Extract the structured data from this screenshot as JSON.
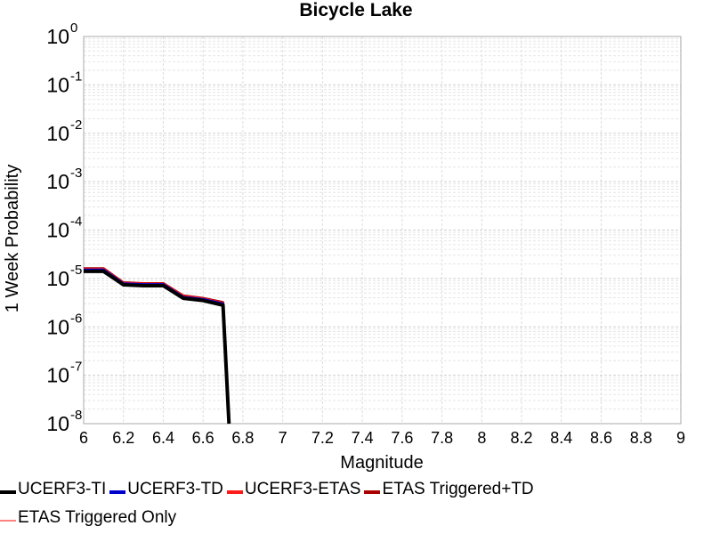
{
  "chart_data": {
    "type": "line",
    "title": "Bicycle Lake",
    "xlabel": "Magnitude",
    "ylabel": "1 Week Probability",
    "xlim": [
      6,
      9
    ],
    "ylim": [
      1e-08,
      1
    ],
    "yscale": "log",
    "x_ticks": [
      "6",
      "6.2",
      "6.4",
      "6.6",
      "6.8",
      "7",
      "7.2",
      "7.4",
      "7.6",
      "7.8",
      "8",
      "8.2",
      "8.4",
      "8.6",
      "8.8",
      "9"
    ],
    "y_ticks": [
      {
        "base": "10",
        "exp": "0"
      },
      {
        "base": "10",
        "exp": "-1"
      },
      {
        "base": "10",
        "exp": "-2"
      },
      {
        "base": "10",
        "exp": "-3"
      },
      {
        "base": "10",
        "exp": "-4"
      },
      {
        "base": "10",
        "exp": "-5"
      },
      {
        "base": "10",
        "exp": "-6"
      },
      {
        "base": "10",
        "exp": "-7"
      },
      {
        "base": "10",
        "exp": "-8"
      }
    ],
    "grid": true,
    "legend_position": "bottom",
    "series": [
      {
        "name": "UCERF3-TI",
        "color": "#000000",
        "x": [
          6.0,
          6.1,
          6.2,
          6.3,
          6.4,
          6.5,
          6.6,
          6.7,
          6.73
        ],
        "y": [
          1.4e-05,
          1.4e-05,
          7.4e-06,
          7.1e-06,
          7.1e-06,
          3.9e-06,
          3.5e-06,
          2.8e-06,
          1e-08
        ]
      },
      {
        "name": "UCERF3-TD",
        "color": "#0000cc",
        "x": [
          6.0,
          6.1,
          6.2,
          6.3,
          6.4,
          6.5,
          6.6,
          6.7,
          6.73
        ],
        "y": [
          1.5e-05,
          1.5e-05,
          7.8e-06,
          7.5e-06,
          7.5e-06,
          4.1e-06,
          3.7e-06,
          3e-06,
          1e-08
        ]
      },
      {
        "name": "UCERF3-ETAS",
        "color": "#ff1a1a",
        "x": [
          6.0,
          6.1,
          6.2,
          6.3,
          6.4,
          6.5,
          6.6,
          6.7,
          6.73
        ],
        "y": [
          1.55e-05,
          1.55e-05,
          8e-06,
          7.7e-06,
          7.7e-06,
          4.3e-06,
          3.8e-06,
          3.1e-06,
          1e-08
        ]
      },
      {
        "name": "ETAS Triggered+TD",
        "color": "#aa0000",
        "x": [
          6.0,
          6.1,
          6.2,
          6.3,
          6.4,
          6.5,
          6.6,
          6.7,
          6.73
        ],
        "y": [
          1.6e-05,
          1.6e-05,
          8.2e-06,
          7.9e-06,
          7.9e-06,
          4.4e-06,
          3.9e-06,
          3.2e-06,
          1e-08
        ]
      },
      {
        "name": "ETAS Triggered Only",
        "color": "#ff8080",
        "x": [
          6.0,
          6.1,
          6.2,
          6.3,
          6.4,
          6.5,
          6.6,
          6.7,
          6.73
        ],
        "y": [
          1.58e-05,
          1.58e-05,
          8.1e-06,
          7.8e-06,
          7.8e-06,
          4.35e-06,
          3.85e-06,
          3.15e-06,
          1e-08
        ]
      }
    ]
  }
}
